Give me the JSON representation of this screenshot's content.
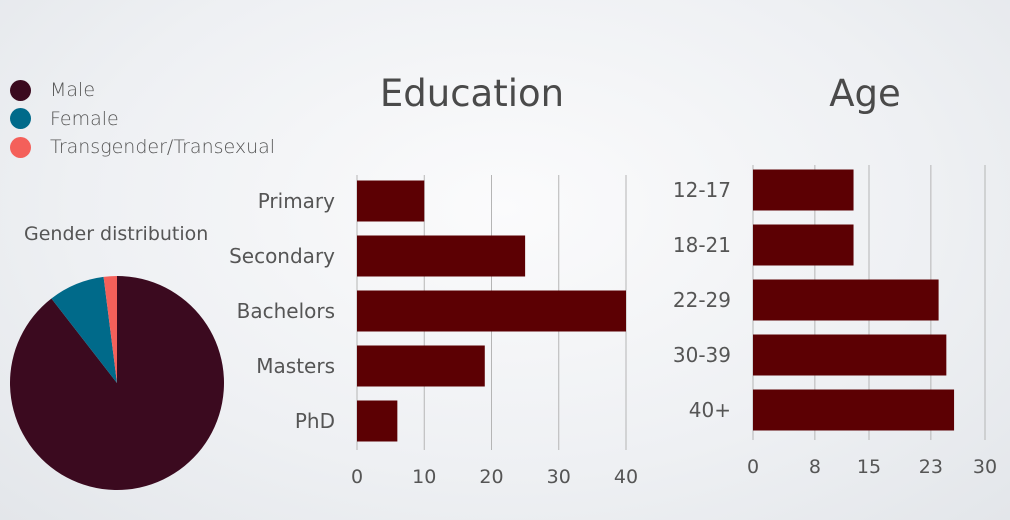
{
  "colors": {
    "bar": "#5c0003",
    "male": "#3b0a1f",
    "female": "#006a8a",
    "trans": "#f4605a",
    "grid": "#b5b5b5"
  },
  "legend": [
    {
      "label": "Male",
      "color": "#3b0a1f"
    },
    {
      "label": "Female",
      "color": "#006a8a"
    },
    {
      "label": "Transgender/Transexual",
      "color": "#f4605a"
    }
  ],
  "chart_data": [
    {
      "type": "pie",
      "title": "Gender distribution",
      "labels": [
        "Male",
        "Female",
        "Transgender/Transexual"
      ],
      "values": [
        89.5,
        8.5,
        2.0
      ],
      "colors": [
        "#3b0a1f",
        "#006a8a",
        "#f4605a"
      ]
    },
    {
      "type": "bar",
      "orientation": "horizontal",
      "title": "Education",
      "categories": [
        "Primary",
        "Secondary",
        "Bachelors",
        "Masters",
        "PhD"
      ],
      "values": [
        10,
        25,
        40,
        19,
        6
      ],
      "xlim": [
        0,
        40
      ],
      "ticks": [
        0,
        10,
        20,
        30,
        40
      ],
      "grid": true
    },
    {
      "type": "bar",
      "orientation": "horizontal",
      "title": "Age",
      "categories": [
        "12-17",
        "18-21",
        "22-29",
        "30-39",
        "40+"
      ],
      "values": [
        13,
        13,
        24,
        25,
        26
      ],
      "xlim": [
        0,
        30
      ],
      "ticks": [
        0,
        8,
        15,
        23,
        30
      ],
      "grid": true
    }
  ]
}
